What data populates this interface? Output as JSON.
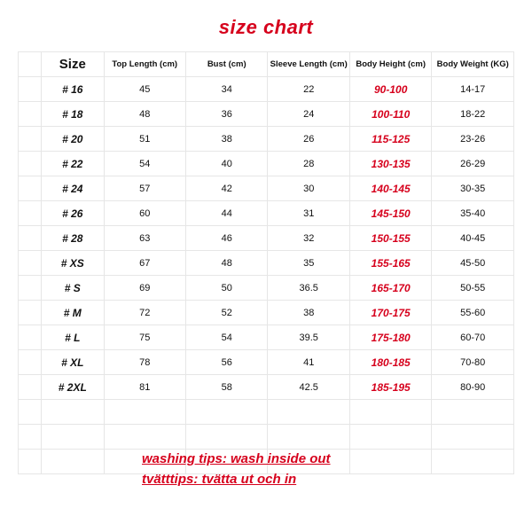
{
  "title": "size chart",
  "title_color": "#d6001c",
  "highlight_color": "#d6001c",
  "text_color": "#111111",
  "border_color": "#e6e6e6",
  "background_color": "#ffffff",
  "columns": {
    "size": "Size",
    "top_length": "Top Length (cm)",
    "bust": "Bust (cm)",
    "sleeve": "Sleeve Length (cm)",
    "height": "Body Height (cm)",
    "weight": "Body Weight (KG)"
  },
  "rows": [
    {
      "size": "# 16",
      "top": "45",
      "bust": "34",
      "sleeve": "22",
      "height": "90-100",
      "weight": "14-17"
    },
    {
      "size": "# 18",
      "top": "48",
      "bust": "36",
      "sleeve": "24",
      "height": "100-110",
      "weight": "18-22"
    },
    {
      "size": "# 20",
      "top": "51",
      "bust": "38",
      "sleeve": "26",
      "height": "115-125",
      "weight": "23-26"
    },
    {
      "size": "# 22",
      "top": "54",
      "bust": "40",
      "sleeve": "28",
      "height": "130-135",
      "weight": "26-29"
    },
    {
      "size": "# 24",
      "top": "57",
      "bust": "42",
      "sleeve": "30",
      "height": "140-145",
      "weight": "30-35"
    },
    {
      "size": "# 26",
      "top": "60",
      "bust": "44",
      "sleeve": "31",
      "height": "145-150",
      "weight": "35-40"
    },
    {
      "size": "# 28",
      "top": "63",
      "bust": "46",
      "sleeve": "32",
      "height": "150-155",
      "weight": "40-45"
    },
    {
      "size": "# XS",
      "top": "67",
      "bust": "48",
      "sleeve": "35",
      "height": "155-165",
      "weight": "45-50"
    },
    {
      "size": "# S",
      "top": "69",
      "bust": "50",
      "sleeve": "36.5",
      "height": "165-170",
      "weight": "50-55"
    },
    {
      "size": "# M",
      "top": "72",
      "bust": "52",
      "sleeve": "38",
      "height": "170-175",
      "weight": "55-60"
    },
    {
      "size": "# L",
      "top": "75",
      "bust": "54",
      "sleeve": "39.5",
      "height": "175-180",
      "weight": "60-70"
    },
    {
      "size": "# XL",
      "top": "78",
      "bust": "56",
      "sleeve": "41",
      "height": "180-185",
      "weight": "70-80"
    },
    {
      "size": "# 2XL",
      "top": "81",
      "bust": "58",
      "sleeve": "42.5",
      "height": "185-195",
      "weight": "80-90"
    }
  ],
  "tips": {
    "line1": "washing tips: wash inside out",
    "line2": "tvätttips: tvätta ut och in"
  }
}
